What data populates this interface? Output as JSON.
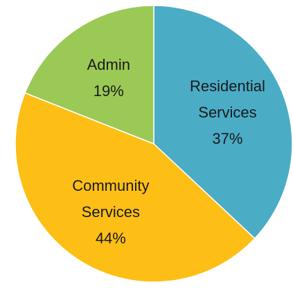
{
  "chart_data": {
    "type": "pie",
    "title": "",
    "start_angle_deg": 0,
    "direction": "clockwise",
    "slices": [
      {
        "label_lines": [
          "Residential",
          "Services"
        ],
        "value": 37,
        "percent_label": "37%",
        "color": "#4BACC6"
      },
      {
        "label_lines": [
          "Community",
          "Services"
        ],
        "value": 44,
        "percent_label": "44%",
        "color": "#FDBF16"
      },
      {
        "label_lines": [
          "Admin"
        ],
        "value": 19,
        "percent_label": "19%",
        "color": "#9BC955"
      }
    ]
  }
}
